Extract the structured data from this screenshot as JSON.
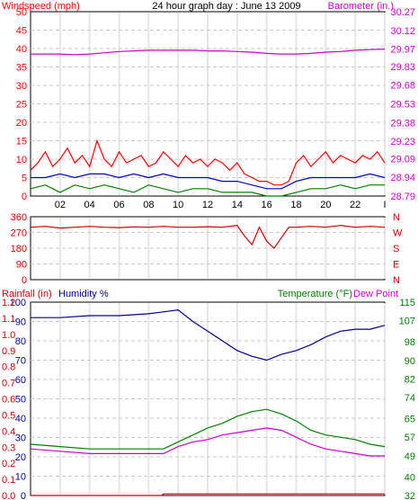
{
  "colors": {
    "wind": "#ff0000",
    "gust": "#0000cc",
    "wind_min": "#008000",
    "barometer": "#cc00cc",
    "direction": "#cc0000",
    "rain": "#cc0000",
    "humidity": "#000099",
    "temperature": "#008000",
    "dew_point": "#cc00cc",
    "grid": "#c8c8c8",
    "frame": "#000000"
  },
  "chart_data": [
    {
      "type": "line",
      "title": "24 hour graph day : June 13 2009",
      "left_axis_title": "Windspeed (mph)",
      "right_axis_title": "Barometer (in.)",
      "x_ticks": [
        "02",
        "04",
        "06",
        "08",
        "10",
        "12",
        "14",
        "16",
        "18",
        "20",
        "22",
        "I"
      ],
      "x_range": [
        0,
        24
      ],
      "ylim_left": [
        0,
        50
      ],
      "y_ticks_left": [
        "0",
        "5",
        "10",
        "15",
        "20",
        "25",
        "30",
        "35",
        "40",
        "45",
        "50"
      ],
      "ylim_right": [
        28.79,
        30.27
      ],
      "y_ticks_right": [
        "28.79",
        "28.94",
        "29.09",
        "29.23",
        "29.38",
        "29.53",
        "29.68",
        "29.83",
        "29.97",
        "30.12",
        "30.27"
      ],
      "grid": true,
      "series": [
        {
          "key": "barometer",
          "axis": "right",
          "x": [
            0,
            1,
            2,
            3,
            4,
            5,
            6,
            7,
            8,
            9,
            10,
            11,
            12,
            13,
            14,
            15,
            16,
            17,
            18,
            19,
            20,
            21,
            22,
            23,
            24
          ],
          "values": [
            29.93,
            29.93,
            29.93,
            29.925,
            29.93,
            29.94,
            29.95,
            29.955,
            29.96,
            29.96,
            29.96,
            29.96,
            29.955,
            29.955,
            29.95,
            29.945,
            29.935,
            29.93,
            29.93,
            29.935,
            29.945,
            29.95,
            29.96,
            29.965,
            29.97
          ]
        },
        {
          "key": "wind",
          "axis": "left",
          "x": [
            0,
            0.5,
            1,
            1.5,
            2,
            2.5,
            3,
            3.5,
            4,
            4.5,
            5,
            5.5,
            6,
            6.5,
            7,
            7.5,
            8,
            8.5,
            9,
            9.5,
            10,
            10.5,
            11,
            11.5,
            12,
            12.5,
            13,
            13.5,
            14,
            14.5,
            15,
            15.5,
            16,
            16.5,
            17,
            17.5,
            18,
            18.5,
            19,
            19.5,
            20,
            20.5,
            21,
            21.5,
            22,
            22.5,
            23,
            23.5,
            24
          ],
          "values": [
            7,
            9,
            12,
            8,
            10,
            13,
            9,
            11,
            8,
            15,
            10,
            8,
            12,
            9,
            10,
            11,
            8,
            9,
            12,
            10,
            8,
            11,
            9,
            10,
            8,
            10,
            9,
            7,
            9,
            6,
            5,
            4,
            4,
            3,
            3,
            4,
            9,
            11,
            8,
            10,
            12,
            9,
            11,
            10,
            9,
            11,
            10,
            12,
            9
          ]
        },
        {
          "key": "gust",
          "axis": "left",
          "x": [
            0,
            1,
            2,
            3,
            4,
            5,
            6,
            7,
            8,
            9,
            10,
            11,
            12,
            13,
            14,
            15,
            16,
            17,
            18,
            19,
            20,
            21,
            22,
            23,
            24
          ],
          "values": [
            5,
            5,
            6,
            5,
            6,
            6,
            5,
            6,
            5,
            6,
            5,
            5,
            5,
            4,
            4,
            3,
            2,
            2,
            4,
            5,
            5,
            5,
            5,
            6,
            5
          ]
        },
        {
          "key": "wind_min",
          "axis": "left",
          "x": [
            0,
            1,
            2,
            3,
            4,
            5,
            6,
            7,
            8,
            9,
            10,
            11,
            12,
            13,
            14,
            15,
            16,
            17,
            18,
            19,
            20,
            21,
            22,
            23,
            24
          ],
          "values": [
            2,
            3,
            1,
            3,
            2,
            3,
            2,
            1,
            3,
            2,
            1,
            2,
            2,
            1,
            1,
            1,
            0,
            0,
            1,
            2,
            2,
            3,
            2,
            3,
            3
          ]
        }
      ]
    },
    {
      "type": "line",
      "left_axis_title": "",
      "x_ticks": [
        "02",
        "04",
        "06",
        "08",
        "10",
        "12",
        "14",
        "16",
        "18",
        "20",
        "22",
        "I"
      ],
      "x_range": [
        0,
        24
      ],
      "ylim_left": [
        0,
        360
      ],
      "y_ticks_left": [
        "0",
        "90",
        "180",
        "270",
        "360"
      ],
      "compass_labels": [
        "N",
        "W",
        "S",
        "E",
        "N"
      ],
      "grid": true,
      "series": [
        {
          "key": "direction",
          "axis": "left",
          "x": [
            0,
            1,
            2,
            3,
            4,
            5,
            6,
            7,
            8,
            9,
            10,
            11,
            12,
            13,
            14,
            14.5,
            15,
            15.5,
            16,
            16.5,
            17,
            17.5,
            18,
            19,
            20,
            21,
            22,
            23,
            24
          ],
          "values": [
            300,
            305,
            295,
            300,
            305,
            300,
            298,
            302,
            300,
            305,
            300,
            300,
            303,
            300,
            310,
            250,
            200,
            300,
            220,
            180,
            240,
            300,
            300,
            305,
            300,
            310,
            300,
            305,
            300
          ]
        }
      ]
    },
    {
      "type": "line",
      "rain_axis_title": "Rainfall (in)",
      "humidity_axis_title": "Humidity %",
      "right_axis_title": "Temperature (°F)",
      "right_axis_title2": "Dew Point",
      "x_ticks": [
        "02",
        "04",
        "06",
        "08",
        "10",
        "12",
        "14",
        "16",
        "18",
        "20",
        "22",
        "I"
      ],
      "x_range": [
        0,
        24
      ],
      "ylim_humidity": [
        0,
        100
      ],
      "y_ticks_humidity": [
        "0",
        "10",
        "20",
        "30",
        "40",
        "50",
        "60",
        "70",
        "80",
        "90",
        "100"
      ],
      "ylim_rain": [
        0.0,
        1.2
      ],
      "y_ticks_rain": [
        "0.0",
        "0.1",
        "0.2",
        "0.3",
        "0.4",
        "0.5",
        "0.6",
        "0.7",
        "0.8",
        "0.9",
        "1.0",
        "1.1",
        "1.2"
      ],
      "ylim_temp": [
        32,
        115
      ],
      "y_ticks_temp": [
        "32",
        "40",
        "49",
        "57",
        "65",
        "74",
        "82",
        "90",
        "98",
        "107",
        "115"
      ],
      "grid": true,
      "series": [
        {
          "key": "humidity",
          "axis": "humidity",
          "x": [
            0,
            2,
            4,
            6,
            8,
            9,
            10,
            11,
            12,
            13,
            14,
            15,
            16,
            17,
            18,
            19,
            20,
            21,
            22,
            23,
            24
          ],
          "values": [
            92,
            92,
            93,
            93,
            94,
            95,
            96,
            90,
            85,
            80,
            75,
            72,
            70,
            73,
            75,
            78,
            82,
            85,
            86,
            86,
            88
          ]
        },
        {
          "key": "temperature",
          "axis": "temp",
          "x": [
            0,
            2,
            4,
            6,
            8,
            9,
            10,
            11,
            12,
            13,
            14,
            15,
            16,
            17,
            18,
            19,
            20,
            21,
            22,
            23,
            24
          ],
          "values": [
            54,
            53,
            52,
            52,
            52,
            52,
            55,
            58,
            61,
            63,
            66,
            68,
            69,
            67,
            64,
            60,
            58,
            57,
            56,
            54,
            53
          ]
        },
        {
          "key": "dew_point",
          "axis": "temp",
          "x": [
            0,
            2,
            4,
            6,
            8,
            9,
            10,
            11,
            12,
            13,
            14,
            15,
            16,
            17,
            18,
            19,
            20,
            21,
            22,
            23,
            24
          ],
          "values": [
            52,
            51,
            50,
            50,
            50,
            50,
            53,
            55,
            56,
            58,
            59,
            60,
            61,
            60,
            57,
            54,
            52,
            51,
            50,
            49,
            49
          ]
        },
        {
          "key": "rain",
          "axis": "rain",
          "x": [
            0,
            8.9,
            9,
            24
          ],
          "values": [
            0.0,
            0.0,
            0.01,
            0.01
          ]
        }
      ]
    }
  ]
}
